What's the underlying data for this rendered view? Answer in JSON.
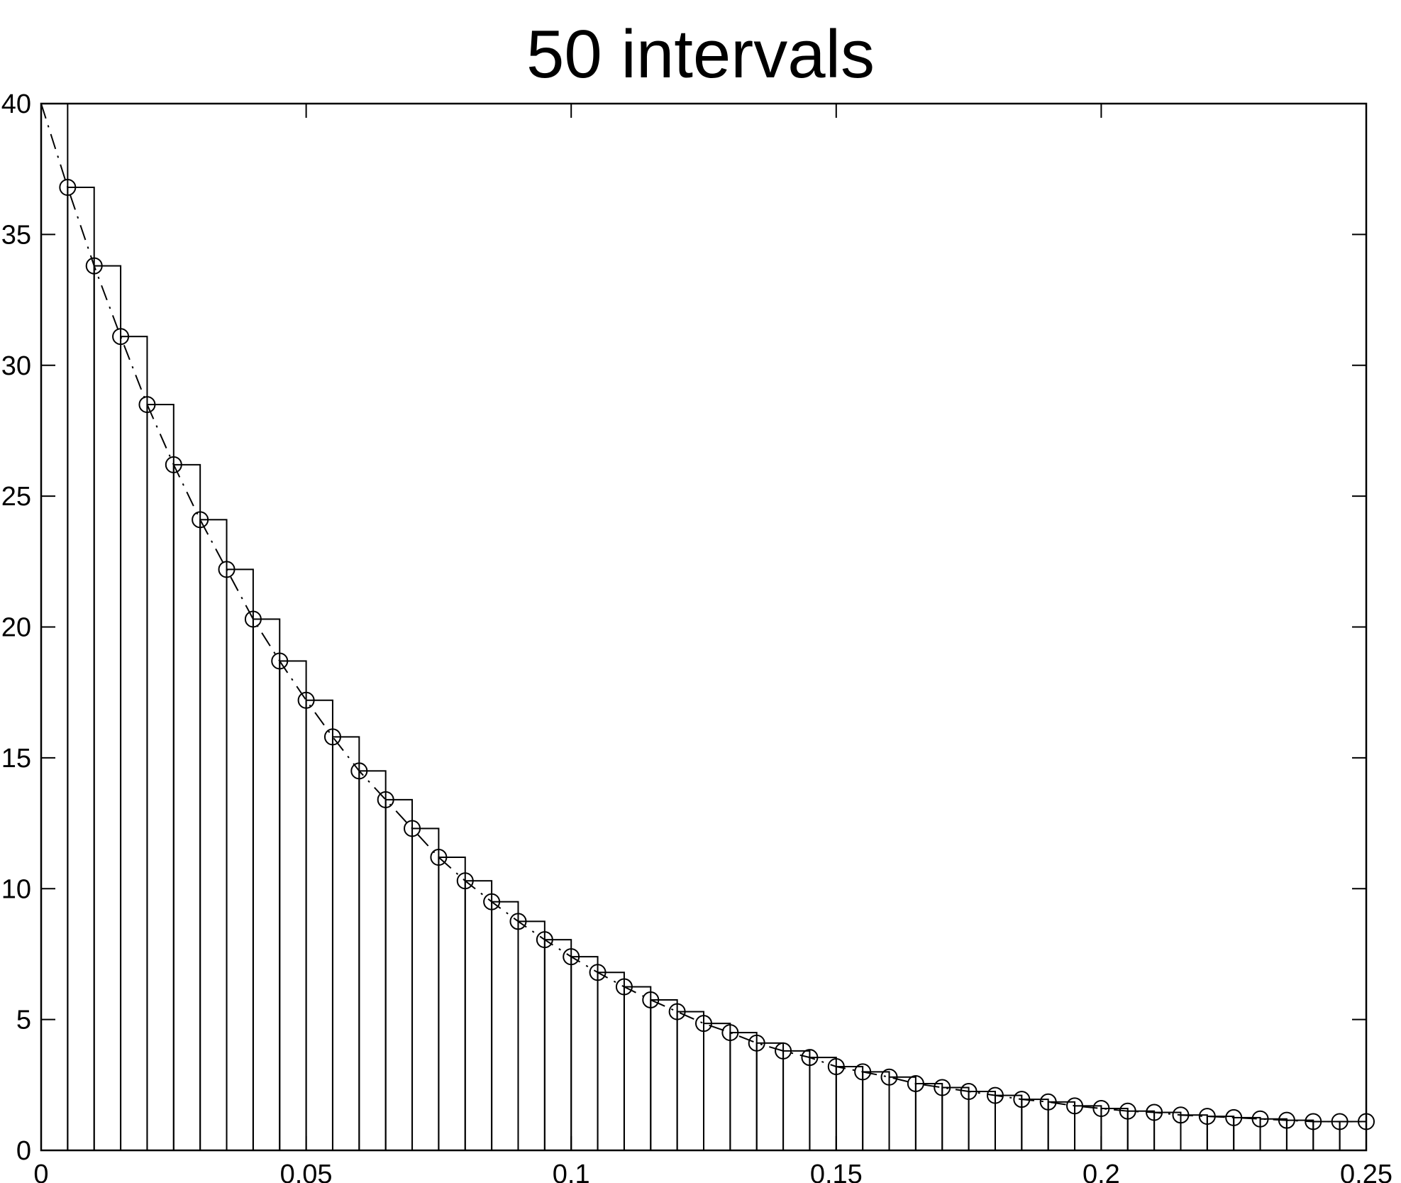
{
  "chart_data": {
    "type": "bar",
    "title": "50 intervals",
    "xlabel": "",
    "ylabel": "",
    "xlim": [
      0,
      0.25
    ],
    "ylim": [
      0,
      40
    ],
    "grid": false,
    "x_ticks": [
      "0",
      "0.05",
      "0.1",
      "0.15",
      "0.2",
      "0.25"
    ],
    "y_ticks": [
      "0",
      "5",
      "10",
      "15",
      "20",
      "25",
      "30",
      "35",
      "40"
    ],
    "bin_width": 0.005,
    "bin_edges_start": 0.005,
    "bar_values": [
      36.8,
      33.8,
      31.1,
      28.5,
      26.2,
      24.1,
      22.2,
      20.3,
      18.7,
      17.2,
      15.8,
      14.5,
      13.4,
      12.3,
      11.2,
      10.3,
      9.5,
      8.75,
      8.05,
      7.4,
      6.8,
      6.25,
      5.75,
      5.3,
      4.85,
      4.5,
      4.1,
      3.8,
      3.55,
      3.2,
      3.0,
      2.8,
      2.55,
      2.4,
      2.25,
      2.1,
      1.95,
      1.85,
      1.7,
      1.6,
      1.5,
      1.45,
      1.35,
      1.3,
      1.25,
      1.2,
      1.15,
      1.1,
      1.1
    ],
    "series": [
      {
        "style": "dash-dot line with circle markers",
        "x": [
          0.005,
          0.01,
          0.015,
          0.02,
          0.025,
          0.03,
          0.035,
          0.04,
          0.045,
          0.05,
          0.055,
          0.06,
          0.065,
          0.07,
          0.075,
          0.08,
          0.085,
          0.09,
          0.095,
          0.1,
          0.105,
          0.11,
          0.115,
          0.12,
          0.125,
          0.13,
          0.135,
          0.14,
          0.145,
          0.15,
          0.155,
          0.16,
          0.165,
          0.17,
          0.175,
          0.18,
          0.185,
          0.19,
          0.195,
          0.2,
          0.205,
          0.21,
          0.215,
          0.22,
          0.225,
          0.23,
          0.235,
          0.24,
          0.245,
          0.25
        ],
        "y": [
          36.8,
          33.8,
          31.1,
          28.5,
          26.2,
          24.1,
          22.2,
          20.3,
          18.7,
          17.2,
          15.8,
          14.5,
          13.4,
          12.3,
          11.2,
          10.3,
          9.5,
          8.75,
          8.05,
          7.4,
          6.8,
          6.25,
          5.75,
          5.3,
          4.85,
          4.5,
          4.1,
          3.8,
          3.55,
          3.2,
          3.0,
          2.8,
          2.55,
          2.4,
          2.25,
          2.1,
          1.95,
          1.85,
          1.7,
          1.6,
          1.5,
          1.45,
          1.35,
          1.3,
          1.25,
          1.2,
          1.15,
          1.1,
          1.1,
          1.1
        ],
        "line_start": [
          0,
          40
        ]
      }
    ]
  }
}
